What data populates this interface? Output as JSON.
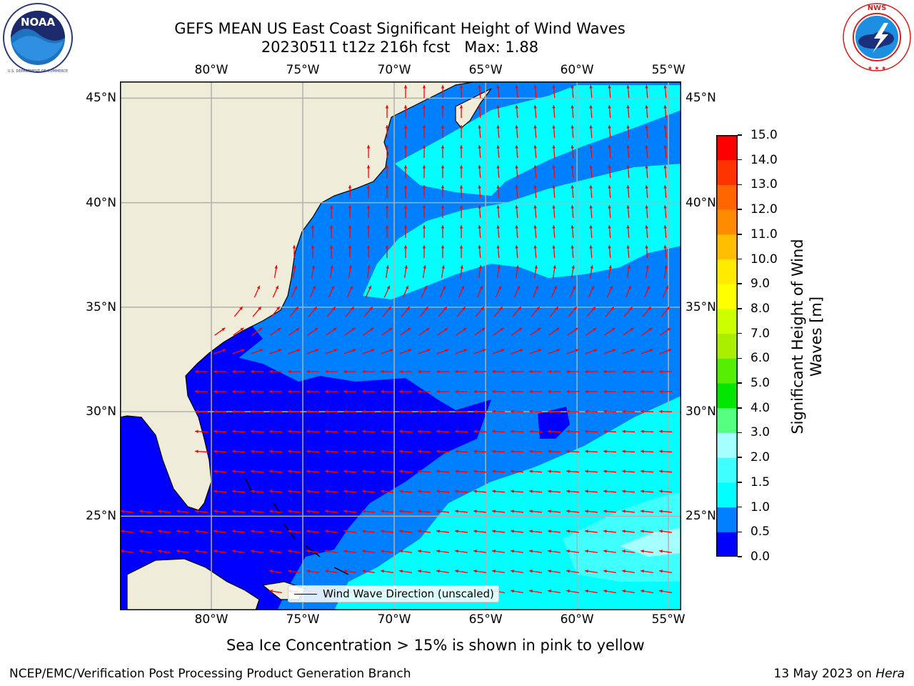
{
  "header": {
    "title_line1": "GEFS MEAN US East Coast Significant Height of Wind Waves",
    "title_line2": "20230511 t12z 216h fcst   Max: 1.88"
  },
  "logos": {
    "left_icon": "noaa-logo",
    "left_text": "NOAA",
    "left_ring_text": "NATIONAL OCEANIC AND ATMOSPHERIC ADMINISTRATION · U.S. DEPARTMENT OF COMMERCE",
    "right_icon": "national-weather-service-logo",
    "right_ring_text": "NATIONAL WEATHER SERVICE"
  },
  "map": {
    "lon_labels": [
      "80°W",
      "75°W",
      "70°W",
      "65°W",
      "60°W",
      "55°W"
    ],
    "lat_labels": [
      "45°N",
      "40°N",
      "35°N",
      "30°N",
      "25°N"
    ],
    "lon_values": [
      -80,
      -75,
      -70,
      -65,
      -60,
      -55
    ],
    "lat_values": [
      45,
      40,
      35,
      30,
      25
    ],
    "extent": {
      "lon": [
        -85,
        -54.3
      ],
      "lat": [
        20.5,
        45.8
      ]
    },
    "land_color": "#efedd9",
    "grid_color": "#b0b0b0",
    "arrow_color": "#ff0000",
    "legend_label": "Wind Wave Direction (unscaled)"
  },
  "colorbar": {
    "title_line1": "Significant Height of Wind",
    "title_line2": "Waves [m]",
    "tick_labels": [
      "0.0",
      "0.5",
      "1.0",
      "1.5",
      "2.0",
      "3.0",
      "4.0",
      "5.0",
      "6.0",
      "7.0",
      "8.0",
      "9.0",
      "10.0",
      "11.0",
      "12.0",
      "13.0",
      "14.0",
      "15.0"
    ],
    "colors": [
      "#0000ff",
      "#0080ff",
      "#00ffff",
      "#40ffff",
      "#a6ffff",
      "#55ff80",
      "#00e600",
      "#55ee00",
      "#aaee00",
      "#ccff00",
      "#ffff00",
      "#ffea00",
      "#ffbf00",
      "#ff8c00",
      "#ff6600",
      "#ff3300",
      "#ff0000"
    ]
  },
  "notes": {
    "sea_ice": "Sea Ice Concentration > 15% is shown in pink to yellow"
  },
  "footer": {
    "left": "NCEP/EMC/Verification Post Processing Product Generation Branch",
    "right_date": "13 May 2023 on",
    "right_machine": "Hera"
  }
}
